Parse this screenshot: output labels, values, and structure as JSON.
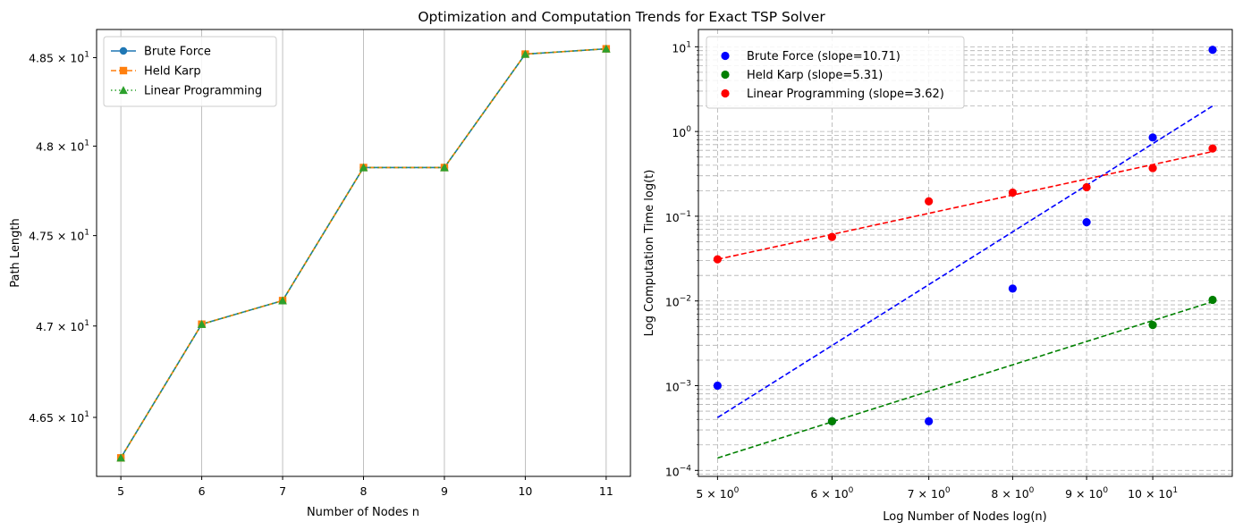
{
  "figure_title": "Optimization and Computation Trends for Exact TSP Solver",
  "chart_data": [
    {
      "type": "line",
      "xlabel": "Number of Nodes n",
      "ylabel": "Path Length",
      "yscale": "log",
      "x": [
        5,
        6,
        7,
        8,
        9,
        10,
        11
      ],
      "xlim": [
        4.7,
        11.3
      ],
      "ylim": [
        46.18,
        48.66
      ],
      "xticks": [
        5,
        6,
        7,
        8,
        9,
        10,
        11
      ],
      "yticks": [
        {
          "value": 46.5,
          "mantissa": "4.65",
          "exp": "1"
        },
        {
          "value": 47.0,
          "mantissa": "4.7",
          "exp": "1"
        },
        {
          "value": 47.5,
          "mantissa": "4.75",
          "exp": "1"
        },
        {
          "value": 48.0,
          "mantissa": "4.8",
          "exp": "1"
        },
        {
          "value": 48.5,
          "mantissa": "4.85",
          "exp": "1"
        }
      ],
      "grid": "vertical",
      "legend_position": "upper-left",
      "series": [
        {
          "name": "Brute Force",
          "color": "#1f77b4",
          "marker": "circle",
          "linestyle": "solid",
          "values": [
            46.28,
            47.01,
            47.14,
            47.88,
            47.88,
            48.52,
            48.55
          ]
        },
        {
          "name": "Held Karp",
          "color": "#ff7f0e",
          "marker": "square",
          "linestyle": "dashed",
          "values": [
            46.28,
            47.01,
            47.14,
            47.88,
            47.88,
            48.52,
            48.55
          ]
        },
        {
          "name": "Linear Programming",
          "color": "#2ca02c",
          "marker": "triangle",
          "linestyle": "dotted",
          "values": [
            46.28,
            47.01,
            47.14,
            47.88,
            47.88,
            48.52,
            48.55
          ]
        }
      ]
    },
    {
      "type": "scatter",
      "xlabel": "Log Number of Nodes log(n)",
      "ylabel": "Log Computation Time log(t)",
      "xscale": "log",
      "yscale": "log",
      "xlim": [
        4.85,
        11.35
      ],
      "ylim": [
        8.5e-05,
        16
      ],
      "xticks": [
        {
          "value": 5,
          "mantissa": "5",
          "exp": "0"
        },
        {
          "value": 6,
          "mantissa": "6",
          "exp": "0"
        },
        {
          "value": 7,
          "mantissa": "7",
          "exp": "0"
        },
        {
          "value": 8,
          "mantissa": "8",
          "exp": "0"
        },
        {
          "value": 9,
          "mantissa": "9",
          "exp": "0"
        },
        {
          "value": 10,
          "mantissa": "10",
          "exp": "1"
        }
      ],
      "yticks": [
        {
          "value": 0.0001,
          "mantissa": "10",
          "exp": "−4"
        },
        {
          "value": 0.001,
          "mantissa": "10",
          "exp": "−3"
        },
        {
          "value": 0.01,
          "mantissa": "10",
          "exp": "−2"
        },
        {
          "value": 0.1,
          "mantissa": "10",
          "exp": "−1"
        },
        {
          "value": 1,
          "mantissa": "10",
          "exp": "0"
        },
        {
          "value": 10,
          "mantissa": "10",
          "exp": "1"
        }
      ],
      "grid": "both-dashed",
      "legend_position": "upper-left",
      "series": [
        {
          "name": "Brute Force (slope=10.71)",
          "color": "#0000ff",
          "x": [
            5,
            6,
            7,
            8,
            9,
            10,
            11
          ],
          "values": [
            0.001,
            0.00038,
            0.00038,
            0.014,
            0.085,
            0.85,
            9.2
          ],
          "fit": {
            "x": [
              5,
              11
            ],
            "y": [
              0.00042,
              2.0
            ]
          }
        },
        {
          "name": "Held Karp (slope=5.31)",
          "color": "#008000",
          "x": [
            6,
            10,
            11
          ],
          "values": [
            0.00038,
            0.0052,
            0.0103
          ],
          "fit": {
            "x": [
              5,
              11
            ],
            "y": [
              0.00014,
              0.0098
            ]
          }
        },
        {
          "name": "Linear Programming (slope=3.62)",
          "color": "#ff0000",
          "x": [
            5,
            6,
            7,
            8,
            9,
            10,
            11
          ],
          "values": [
            0.031,
            0.057,
            0.15,
            0.19,
            0.22,
            0.37,
            0.63
          ],
          "fit": {
            "x": [
              5,
              11
            ],
            "y": [
              0.031,
              0.58
            ]
          }
        }
      ]
    }
  ]
}
